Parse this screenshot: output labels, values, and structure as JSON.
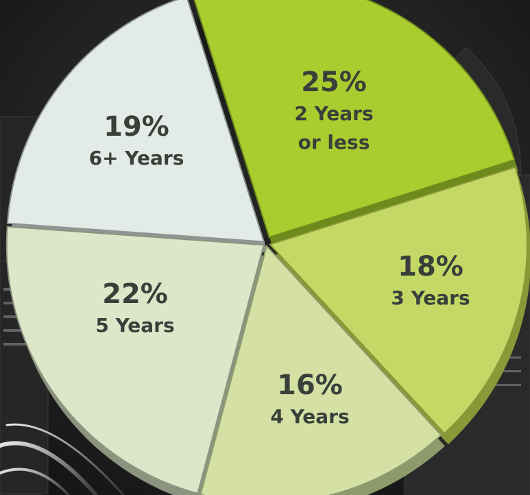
{
  "chart_data": {
    "type": "pie",
    "slices": [
      {
        "label": "2 Years\nor less",
        "value": 25,
        "pct_text": "25%",
        "color": "#a9cc2e",
        "side": "#6e8a1c"
      },
      {
        "label": "3 Years",
        "value": 18,
        "pct_text": "18%",
        "color": "#c4d866",
        "side": "#899938"
      },
      {
        "label": "4 Years",
        "value": 16,
        "pct_text": "16%",
        "color": "#d4e0a4",
        "side": "#8d9a6c"
      },
      {
        "label": "5 Years",
        "value": 22,
        "pct_text": "22%",
        "color": "#dde6c8",
        "side": "#8c9480"
      },
      {
        "label": "6+ Years",
        "value": 19,
        "pct_text": "19%",
        "color": "#e3ebe6",
        "side": "#8f9692"
      }
    ]
  }
}
